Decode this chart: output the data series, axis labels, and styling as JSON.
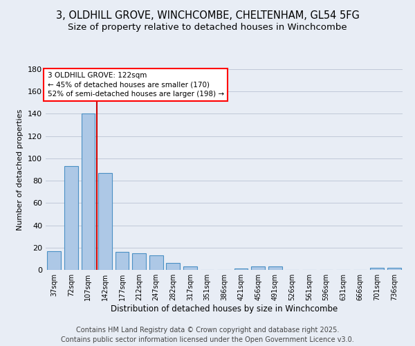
{
  "title_line1": "3, OLDHILL GROVE, WINCHCOMBE, CHELTENHAM, GL54 5FG",
  "title_line2": "Size of property relative to detached houses in Winchcombe",
  "xlabel": "Distribution of detached houses by size in Winchcombe",
  "ylabel": "Number of detached properties",
  "categories": [
    "37sqm",
    "72sqm",
    "107sqm",
    "142sqm",
    "177sqm",
    "212sqm",
    "247sqm",
    "282sqm",
    "317sqm",
    "351sqm",
    "386sqm",
    "421sqm",
    "456sqm",
    "491sqm",
    "526sqm",
    "561sqm",
    "596sqm",
    "631sqm",
    "666sqm",
    "701sqm",
    "736sqm"
  ],
  "values": [
    17,
    93,
    140,
    87,
    16,
    15,
    13,
    6,
    3,
    0,
    0,
    1,
    3,
    3,
    0,
    0,
    0,
    0,
    0,
    2,
    2
  ],
  "bar_color": "#adc8e6",
  "bar_edge_color": "#4a90c4",
  "red_line_index": 2.5,
  "annotation_line1": "3 OLDHILL GROVE: 122sqm",
  "annotation_line2": "← 45% of detached houses are smaller (170)",
  "annotation_line3": "52% of semi-detached houses are larger (198) →",
  "annotation_box_color": "white",
  "annotation_box_edge_color": "red",
  "red_line_color": "#cc0000",
  "ylim": [
    0,
    180
  ],
  "yticks": [
    0,
    20,
    40,
    60,
    80,
    100,
    120,
    140,
    160,
    180
  ],
  "grid_color": "#c0c8d8",
  "background_color": "#e8edf5",
  "footer_line1": "Contains HM Land Registry data © Crown copyright and database right 2025.",
  "footer_line2": "Contains public sector information licensed under the Open Government Licence v3.0.",
  "footer_fontsize": 7,
  "title1_fontsize": 10.5,
  "title2_fontsize": 9.5
}
